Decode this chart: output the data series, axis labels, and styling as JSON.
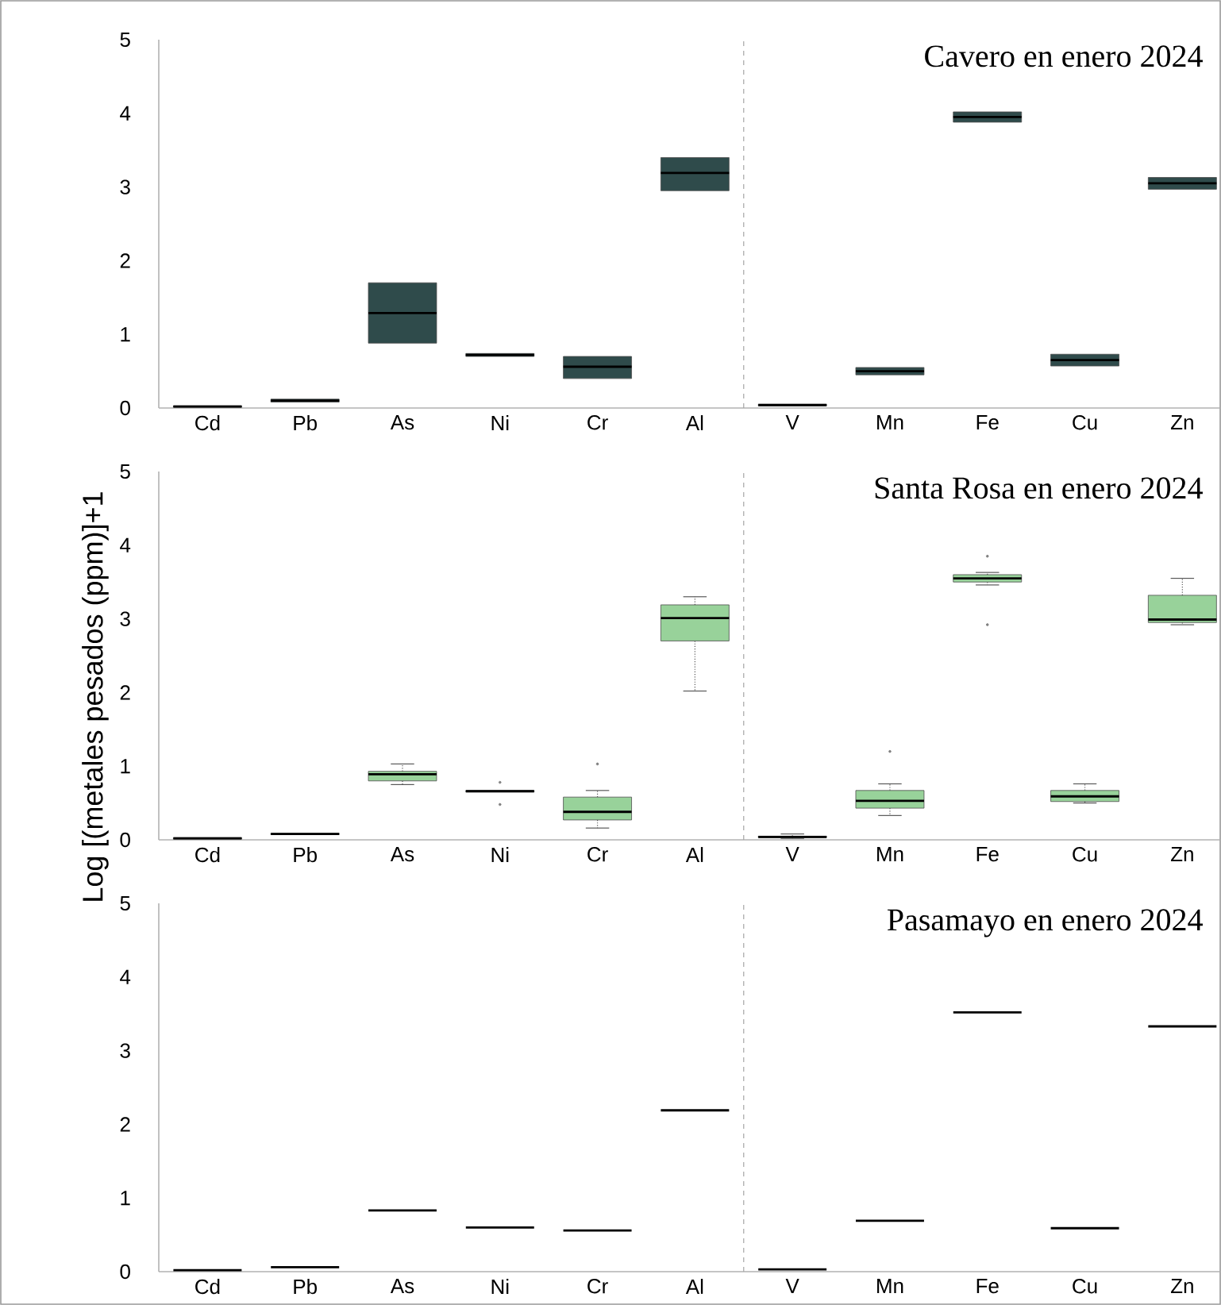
{
  "chart_data": [
    {
      "type": "box",
      "title": "Cavero en enero 2024",
      "categories": [
        "Cd",
        "Pb",
        "As",
        "Ni",
        "Cr",
        "Al",
        "V",
        "Mn",
        "Fe",
        "Cu",
        "Zn"
      ],
      "color": "#2f4b4b",
      "ylim": [
        0,
        5
      ],
      "yticks": [
        0,
        1,
        2,
        3,
        4,
        5
      ],
      "boxes": [
        {
          "low": 0.01,
          "q1": 0.01,
          "median": 0.02,
          "q3": 0.03,
          "high": 0.03
        },
        {
          "low": 0.08,
          "q1": 0.08,
          "median": 0.1,
          "q3": 0.12,
          "high": 0.12
        },
        {
          "low": 0.88,
          "q1": 0.88,
          "median": 1.29,
          "q3": 1.7,
          "high": 1.7
        },
        {
          "low": 0.7,
          "q1": 0.7,
          "median": 0.72,
          "q3": 0.74,
          "high": 0.74
        },
        {
          "low": 0.4,
          "q1": 0.4,
          "median": 0.56,
          "q3": 0.7,
          "high": 0.7
        },
        {
          "low": 2.95,
          "q1": 2.95,
          "median": 3.19,
          "q3": 3.4,
          "high": 3.4
        },
        {
          "low": 0.03,
          "q1": 0.03,
          "median": 0.04,
          "q3": 0.05,
          "high": 0.05
        },
        {
          "low": 0.45,
          "q1": 0.45,
          "median": 0.5,
          "q3": 0.55,
          "high": 0.55
        },
        {
          "low": 3.88,
          "q1": 3.88,
          "median": 3.95,
          "q3": 4.02,
          "high": 4.02
        },
        {
          "low": 0.57,
          "q1": 0.57,
          "median": 0.65,
          "q3": 0.73,
          "high": 0.73
        },
        {
          "low": 2.97,
          "q1": 2.97,
          "median": 3.05,
          "q3": 3.13,
          "high": 3.13
        }
      ]
    },
    {
      "type": "box",
      "title": "Santa Rosa en enero 2024",
      "ylabel": "Log [(metales pesados (ppm)]+1",
      "categories": [
        "Cd",
        "Pb",
        "As",
        "Ni",
        "Cr",
        "Al",
        "V",
        "Mn",
        "Fe",
        "Cu",
        "Zn"
      ],
      "color": "#98d29a",
      "ylim": [
        0,
        5
      ],
      "yticks": [
        0,
        1,
        2,
        3,
        4,
        5
      ],
      "boxes": [
        {
          "low": 0.01,
          "q1": 0.01,
          "median": 0.02,
          "q3": 0.03,
          "high": 0.03
        },
        {
          "low": 0.07,
          "q1": 0.07,
          "median": 0.08,
          "q3": 0.09,
          "high": 0.09
        },
        {
          "low": 0.75,
          "q1": 0.8,
          "median": 0.89,
          "q3": 0.93,
          "high": 1.03
        },
        {
          "low": 0.65,
          "q1": 0.65,
          "median": 0.66,
          "q3": 0.67,
          "high": 0.67,
          "outliers": [
            0.78,
            0.48
          ]
        },
        {
          "low": 0.16,
          "q1": 0.27,
          "median": 0.38,
          "q3": 0.58,
          "high": 0.67,
          "outliers": [
            1.03
          ]
        },
        {
          "low": 2.02,
          "q1": 2.7,
          "median": 3.01,
          "q3": 3.19,
          "high": 3.3
        },
        {
          "low": 0.02,
          "q1": 0.03,
          "median": 0.04,
          "q3": 0.05,
          "high": 0.08
        },
        {
          "low": 0.33,
          "q1": 0.43,
          "median": 0.53,
          "q3": 0.67,
          "high": 0.76,
          "outliers": [
            1.2
          ]
        },
        {
          "low": 3.46,
          "q1": 3.5,
          "median": 3.55,
          "q3": 3.6,
          "high": 3.63,
          "outliers": [
            3.85,
            2.92
          ]
        },
        {
          "low": 0.5,
          "q1": 0.52,
          "median": 0.59,
          "q3": 0.67,
          "high": 0.76
        },
        {
          "low": 2.92,
          "q1": 2.95,
          "median": 2.99,
          "q3": 3.32,
          "high": 3.55
        }
      ]
    },
    {
      "type": "box",
      "title": "Pasamayo en enero 2024",
      "categories": [
        "Cd",
        "Pb",
        "As",
        "Ni",
        "Cr",
        "Al",
        "V",
        "Mn",
        "Fe",
        "Cu",
        "Zn"
      ],
      "ylim": [
        0,
        5
      ],
      "yticks": [
        0,
        1,
        2,
        3,
        4,
        5
      ],
      "boxes": [
        {
          "low": 0.02,
          "q1": 0.02,
          "median": 0.02,
          "q3": 0.02,
          "high": 0.02
        },
        {
          "low": 0.06,
          "q1": 0.06,
          "median": 0.06,
          "q3": 0.06,
          "high": 0.06
        },
        {
          "low": 0.83,
          "q1": 0.83,
          "median": 0.83,
          "q3": 0.83,
          "high": 0.83
        },
        {
          "low": 0.6,
          "q1": 0.6,
          "median": 0.6,
          "q3": 0.6,
          "high": 0.6
        },
        {
          "low": 0.56,
          "q1": 0.56,
          "median": 0.56,
          "q3": 0.56,
          "high": 0.56
        },
        {
          "low": 2.19,
          "q1": 2.19,
          "median": 2.19,
          "q3": 2.19,
          "high": 2.19
        },
        {
          "low": 0.03,
          "q1": 0.03,
          "median": 0.03,
          "q3": 0.03,
          "high": 0.03
        },
        {
          "low": 0.69,
          "q1": 0.69,
          "median": 0.69,
          "q3": 0.69,
          "high": 0.69
        },
        {
          "low": 3.52,
          "q1": 3.52,
          "median": 3.52,
          "q3": 3.52,
          "high": 3.52
        },
        {
          "low": 0.59,
          "q1": 0.59,
          "median": 0.59,
          "q3": 0.59,
          "high": 0.59
        },
        {
          "low": 3.33,
          "q1": 3.33,
          "median": 3.33,
          "q3": 3.33,
          "high": 3.33
        }
      ]
    }
  ]
}
